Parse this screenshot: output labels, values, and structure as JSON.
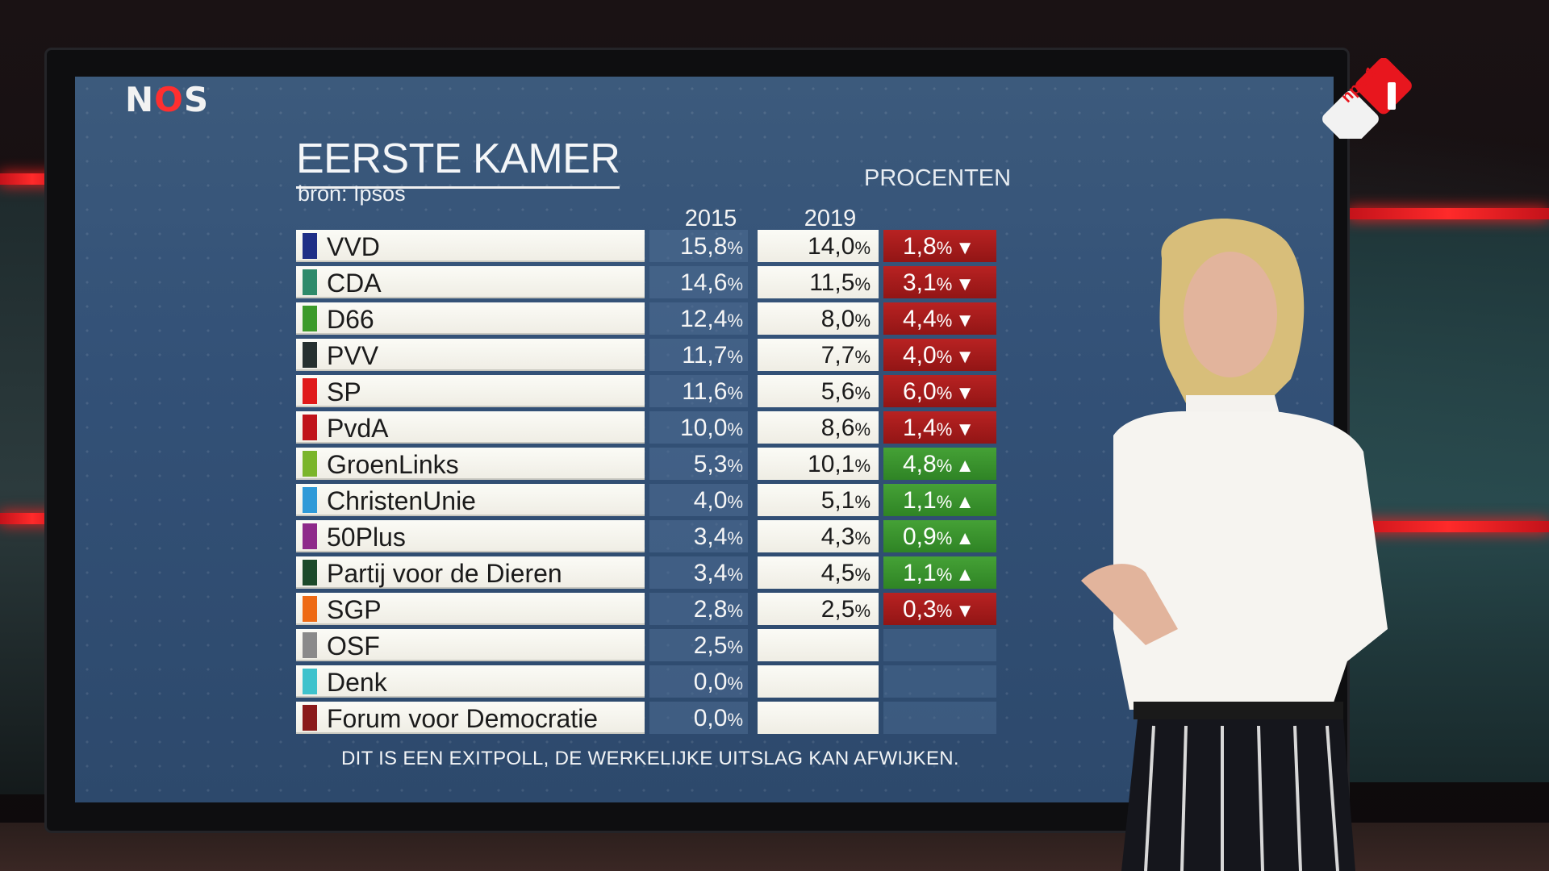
{
  "broadcaster": "NOS",
  "channel": "npo 1",
  "title": "EERSTE KAMER",
  "source": "bron: Ipsos",
  "unit_label": "PROCENTEN",
  "years": [
    "2015",
    "2019"
  ],
  "footer": "DIT IS EEN EXITPOLL, DE WERKELIJKE UITSLAG KAN AFWIJKEN.",
  "chart_data": {
    "type": "table",
    "title": "EERSTE KAMER",
    "subtitle": "bron: Ipsos",
    "unit": "PROCENTEN",
    "columns": [
      "2015",
      "2019"
    ],
    "rows": [
      {
        "party": "VVD",
        "color": "#1f2f86",
        "v2015": "15,8",
        "v2019": "14,0",
        "change": "1,8",
        "direction": "down"
      },
      {
        "party": "CDA",
        "color": "#2e8a6a",
        "v2015": "14,6",
        "v2019": "11,5",
        "change": "3,1",
        "direction": "down"
      },
      {
        "party": "D66",
        "color": "#3c9a2a",
        "v2015": "12,4",
        "v2019": "8,0",
        "change": "4,4",
        "direction": "down"
      },
      {
        "party": "PVV",
        "color": "#26302f",
        "v2015": "11,7",
        "v2019": "7,7",
        "change": "4,0",
        "direction": "down"
      },
      {
        "party": "SP",
        "color": "#e01a1a",
        "v2015": "11,6",
        "v2019": "5,6",
        "change": "6,0",
        "direction": "down"
      },
      {
        "party": "PvdA",
        "color": "#c0141a",
        "v2015": "10,0",
        "v2019": "8,6",
        "change": "1,4",
        "direction": "down"
      },
      {
        "party": "GroenLinks",
        "color": "#7ab52a",
        "v2015": "5,3",
        "v2019": "10,1",
        "change": "4,8",
        "direction": "up"
      },
      {
        "party": "ChristenUnie",
        "color": "#2f9ad8",
        "v2015": "4,0",
        "v2019": "5,1",
        "change": "1,1",
        "direction": "up"
      },
      {
        "party": "50Plus",
        "color": "#8e2a8a",
        "v2015": "3,4",
        "v2019": "4,3",
        "change": "0,9",
        "direction": "up"
      },
      {
        "party": "Partij voor de Dieren",
        "color": "#1c4a2a",
        "v2015": "3,4",
        "v2019": "4,5",
        "change": "1,1",
        "direction": "up"
      },
      {
        "party": "SGP",
        "color": "#ee6a14",
        "v2015": "2,8",
        "v2019": "2,5",
        "change": "0,3",
        "direction": "down"
      },
      {
        "party": "OSF",
        "color": "#8a8a8a",
        "v2015": "2,5",
        "v2019": "",
        "change": "",
        "direction": "none"
      },
      {
        "party": "Denk",
        "color": "#3ec2cc",
        "v2015": "0,0",
        "v2019": "",
        "change": "",
        "direction": "none"
      },
      {
        "party": "Forum voor Democratie",
        "color": "#8a1a1a",
        "v2015": "0,0",
        "v2019": "",
        "change": "",
        "direction": "none"
      }
    ]
  }
}
